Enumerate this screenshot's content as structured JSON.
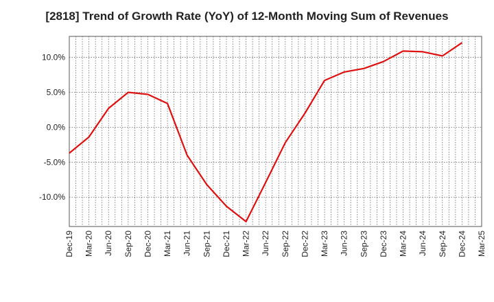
{
  "chart_data": {
    "type": "line",
    "title": "[2818]  Trend of Growth Rate (YoY) of 12-Month Moving Sum of Revenues",
    "xlabel": "",
    "ylabel": "",
    "x": [
      "Dec-19",
      "Mar-20",
      "Jun-20",
      "Sep-20",
      "Dec-20",
      "Mar-21",
      "Jun-21",
      "Sep-21",
      "Dec-21",
      "Mar-22",
      "Jun-22",
      "Sep-22",
      "Dec-22",
      "Mar-23",
      "Jun-23",
      "Sep-23",
      "Dec-23",
      "Mar-24",
      "Jun-24",
      "Sep-24",
      "Dec-24",
      "Mar-25"
    ],
    "x_tick_labels": [
      "Dec-19",
      "Mar-20",
      "Jun-20",
      "Sep-20",
      "Dec-20",
      "Mar-21",
      "Jun-21",
      "Sep-21",
      "Dec-21",
      "Mar-22",
      "Jun-22",
      "Sep-22",
      "Dec-22",
      "Mar-23",
      "Jun-23",
      "Sep-23",
      "Dec-23",
      "Mar-24",
      "Jun-24",
      "Sep-24",
      "Dec-24",
      "Mar-25"
    ],
    "y_ticks": [
      10,
      5,
      0,
      -5,
      -10
    ],
    "y_tick_labels": [
      "10.0%",
      "5.0%",
      "0.0%",
      "-5.0%",
      "-10.0%"
    ],
    "ylim": [
      -14.2,
      13.0
    ],
    "grid": true,
    "series": [
      {
        "color": "#dd1111",
        "values": [
          -3.7,
          -1.4,
          2.7,
          5.0,
          4.7,
          3.4,
          -4.0,
          -8.2,
          -11.3,
          -13.5,
          -7.9,
          -2.2,
          2.0,
          6.7,
          7.9,
          8.4,
          9.4,
          10.9,
          10.8,
          10.2,
          12.1,
          null
        ]
      }
    ]
  }
}
